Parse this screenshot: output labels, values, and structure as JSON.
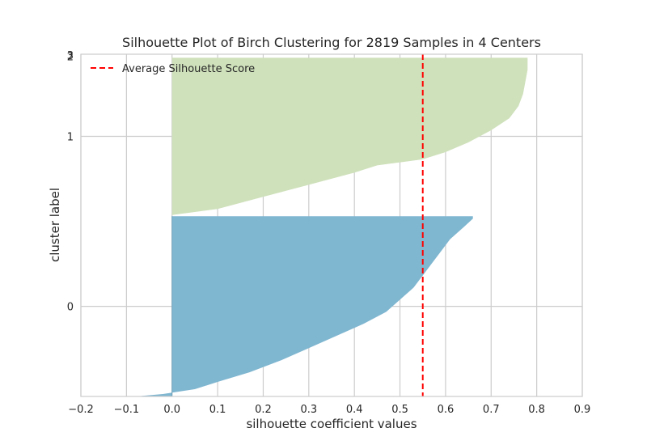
{
  "chart_data": {
    "type": "area",
    "title": "Silhouette Plot of Birch Clustering for 2819 Samples in 4 Centers",
    "xlabel": "silhouette coefficient values",
    "ylabel": "cluster label",
    "xlim": [
      -0.2,
      0.9
    ],
    "ylim": [
      0,
      2829
    ],
    "x_ticks": [
      -0.2,
      -0.1,
      0.0,
      0.1,
      0.2,
      0.3,
      0.4,
      0.5,
      0.6,
      0.7,
      0.8,
      0.9
    ],
    "x_tick_labels": [
      "−0.2",
      "−0.1",
      "0.0",
      "0.1",
      "0.2",
      "0.3",
      "0.4",
      "0.5",
      "0.6",
      "0.7",
      "0.8",
      "0.9"
    ],
    "y_tick_labels": [
      "0",
      "1",
      "2",
      "3"
    ],
    "grid": true,
    "legend_position": "top-left",
    "legend": [
      {
        "label": "Average Silhouette Score",
        "color": "#ff0000",
        "style": "dashed"
      }
    ],
    "average_silhouette_score": 0.55,
    "colors": {
      "cluster_0": "#7fb6d0",
      "cluster_1": "#cfe1bb",
      "average_line": "#ff0000",
      "grid": "#cccccc",
      "axes": "#cccccc"
    },
    "series": [
      {
        "name": "0",
        "y_range": [
          0,
          1490
        ],
        "profile": [
          [
            0,
            -0.08
          ],
          [
            20,
            -0.02
          ],
          [
            60,
            0.05
          ],
          [
            120,
            0.1
          ],
          [
            200,
            0.17
          ],
          [
            300,
            0.24
          ],
          [
            400,
            0.3
          ],
          [
            500,
            0.36
          ],
          [
            600,
            0.42
          ],
          [
            700,
            0.47
          ],
          [
            800,
            0.5
          ],
          [
            900,
            0.53
          ],
          [
            1000,
            0.55
          ],
          [
            1100,
            0.57
          ],
          [
            1200,
            0.59
          ],
          [
            1300,
            0.61
          ],
          [
            1400,
            0.64
          ],
          [
            1470,
            0.66
          ],
          [
            1490,
            0.66
          ]
        ]
      },
      {
        "name": "1",
        "y_range": [
          1500,
          2800
        ],
        "profile": [
          [
            1500,
            0.0
          ],
          [
            1550,
            0.1
          ],
          [
            1650,
            0.2
          ],
          [
            1750,
            0.3
          ],
          [
            1850,
            0.4
          ],
          [
            1910,
            0.45
          ],
          [
            1960,
            0.55
          ],
          [
            2020,
            0.6
          ],
          [
            2100,
            0.65
          ],
          [
            2200,
            0.7
          ],
          [
            2300,
            0.74
          ],
          [
            2400,
            0.76
          ],
          [
            2500,
            0.77
          ],
          [
            2600,
            0.775
          ],
          [
            2700,
            0.78
          ],
          [
            2800,
            0.78
          ]
        ]
      },
      {
        "name": "2",
        "y_range": [
          2810,
          2812
        ],
        "profile": [
          [
            2810,
            0.0
          ],
          [
            2812,
            0.0
          ]
        ]
      },
      {
        "name": "3",
        "y_range": [
          2822,
          2824
        ],
        "profile": [
          [
            2822,
            0.0
          ],
          [
            2824,
            0.0
          ]
        ]
      }
    ],
    "y_label_positions": [
      745,
      2150,
      2811,
      2823
    ]
  }
}
